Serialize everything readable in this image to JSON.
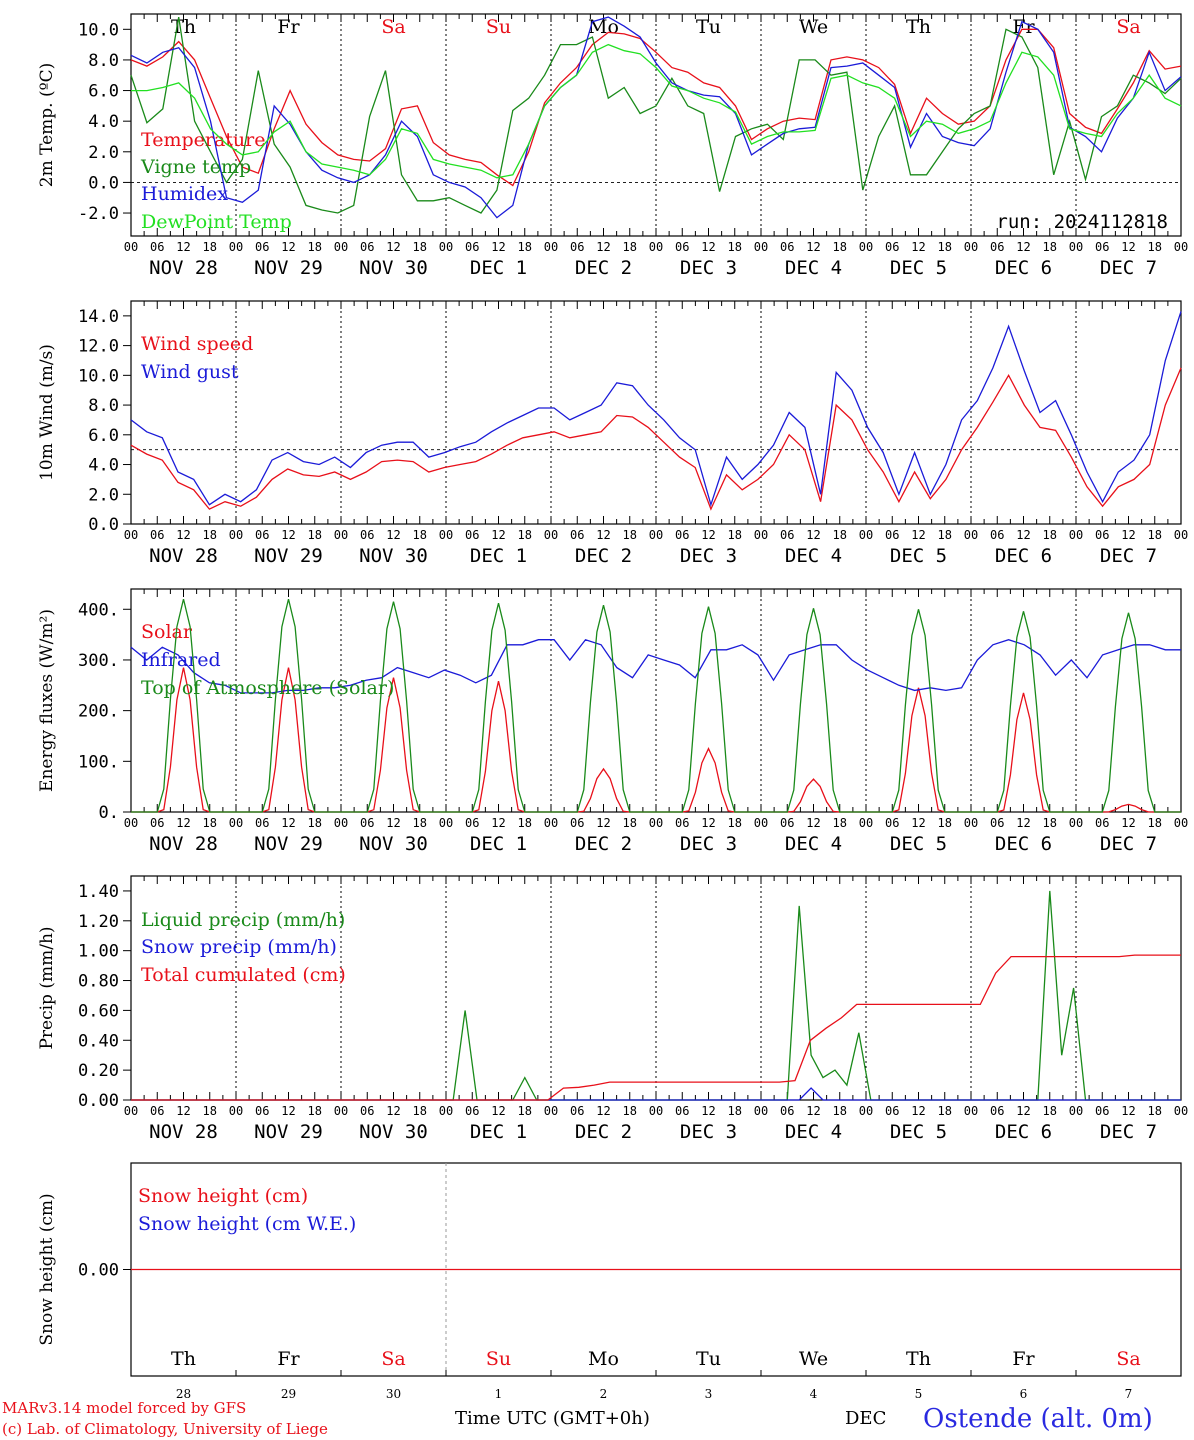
{
  "colors": {
    "red": "#e8101a",
    "green": "#1a8a1a",
    "blue": "#1b1bd8",
    "lightgreen": "#22e022",
    "black": "#000000",
    "title_blue": "#2a2ae0"
  },
  "day_labels_top": [
    "Th",
    "Fr",
    "Sa",
    "Su",
    "Mo",
    "Tu",
    "We",
    "Th",
    "Fr",
    "Sa"
  ],
  "day_label_colors": [
    "black",
    "black",
    "red",
    "red",
    "black",
    "black",
    "black",
    "black",
    "black",
    "red"
  ],
  "hour_ticks": [
    "00",
    "06",
    "12",
    "18"
  ],
  "date_labels": [
    "NOV 28",
    "NOV 29",
    "NOV 30",
    "DEC  1",
    "DEC  2",
    "DEC  3",
    "DEC  4",
    "DEC  5",
    "DEC  6",
    "DEC  7"
  ],
  "bottom_day_numbers": [
    "28",
    "29",
    "30",
    "1",
    "2",
    "3",
    "4",
    "5",
    "6",
    "7"
  ],
  "footer": {
    "line1": "MARv3.14 model forced by GFS",
    "line2": "(c) Lab. of Climatology, University of Liege",
    "time_label": "Time UTC (GMT+0h)",
    "month": "DEC",
    "station": "Ostende (alt. 0m)"
  },
  "chart_data": [
    {
      "type": "line",
      "ylabel": "2m Temp. (ºC)",
      "ylim": [
        -3.5,
        11.0
      ],
      "yticks": [
        "-2.0",
        "0.0",
        "2.0",
        "4.0",
        "6.0",
        "8.0",
        "10.0"
      ],
      "yticks_values": [
        -2,
        0,
        2,
        4,
        6,
        8,
        10
      ],
      "hline": 0,
      "annotation": "run: 2024112818",
      "x": "3-hourly from NOV 28 00 UTC to DEC 8 00 UTC",
      "series": [
        {
          "name": "Temperature",
          "color": "red",
          "values": [
            8.0,
            7.6,
            8.2,
            9.2,
            8.0,
            5.5,
            3.0,
            1.0,
            0.6,
            3.5,
            6.0,
            3.8,
            2.6,
            1.8,
            1.5,
            1.4,
            2.2,
            4.8,
            5.0,
            2.6,
            1.8,
            1.5,
            1.3,
            0.5,
            -0.2,
            2.0,
            5.2,
            6.5,
            7.5,
            9.0,
            9.8,
            9.7,
            9.4,
            8.5,
            7.5,
            7.2,
            6.5,
            6.2,
            5.0,
            2.8,
            3.5,
            4.0,
            4.2,
            4.1,
            8.0,
            8.2,
            8.0,
            7.5,
            6.4,
            3.2,
            5.5,
            4.5,
            3.8,
            4.0,
            5.0,
            8.0,
            10.0,
            10.0,
            8.8,
            4.5,
            3.6,
            3.2,
            4.8,
            6.5,
            8.6,
            7.4,
            7.6
          ]
        },
        {
          "name": "Vigne temp",
          "color": "green",
          "values": [
            7.0,
            3.9,
            4.8,
            10.8,
            4.0,
            2.0,
            0.0,
            1.5,
            7.3,
            2.5,
            1.0,
            -1.5,
            -1.8,
            -2.0,
            -1.5,
            4.3,
            7.3,
            0.5,
            -1.2,
            -1.2,
            -1.0,
            -1.5,
            -2.0,
            -0.5,
            4.7,
            5.5,
            7.0,
            9.0,
            9.0,
            9.5,
            5.5,
            6.2,
            4.5,
            5.0,
            6.8,
            5.0,
            4.5,
            -0.6,
            3.0,
            3.5,
            3.8,
            2.8,
            8.0,
            8.0,
            7.0,
            7.2,
            -0.5,
            3.0,
            5.0,
            0.5,
            0.5,
            2.0,
            3.5,
            4.5,
            5.0,
            10.0,
            9.5,
            7.5,
            0.5,
            4.0,
            0.2,
            4.3,
            5.0,
            7.0,
            6.5,
            5.8,
            6.8
          ]
        },
        {
          "name": "Humidex",
          "color": "blue",
          "values": [
            8.3,
            7.8,
            8.5,
            8.8,
            7.5,
            4.0,
            -1.0,
            -1.3,
            -0.5,
            5.0,
            3.8,
            2.0,
            0.8,
            0.3,
            0.0,
            0.5,
            1.8,
            4.0,
            3.0,
            0.5,
            0.0,
            -0.3,
            -1.0,
            -2.3,
            -1.5,
            2.5,
            5.0,
            6.2,
            7.0,
            10.5,
            10.8,
            10.2,
            9.5,
            7.8,
            6.5,
            6.0,
            5.7,
            5.6,
            4.5,
            1.8,
            2.5,
            3.2,
            3.5,
            3.6,
            7.5,
            7.6,
            7.8,
            7.0,
            6.2,
            2.3,
            4.5,
            3.0,
            2.6,
            2.4,
            3.5,
            7.2,
            10.5,
            10.0,
            8.5,
            3.6,
            3.0,
            2.0,
            4.2,
            5.5,
            8.5,
            6.0,
            6.9
          ]
        },
        {
          "name": "DewPoint Temp",
          "color": "lightgreen",
          "values": [
            6.0,
            6.0,
            6.2,
            6.5,
            5.5,
            3.5,
            2.5,
            1.8,
            2.0,
            3.3,
            4.0,
            2.0,
            1.2,
            1.0,
            0.8,
            0.5,
            1.5,
            3.5,
            3.2,
            1.5,
            1.2,
            1.0,
            0.8,
            0.3,
            0.5,
            2.5,
            5.0,
            6.2,
            7.0,
            8.5,
            9.0,
            8.6,
            8.4,
            7.5,
            6.3,
            6.0,
            5.5,
            5.2,
            4.6,
            2.5,
            3.0,
            3.3,
            3.3,
            3.4,
            6.8,
            7.0,
            6.5,
            6.2,
            5.5,
            3.0,
            4.0,
            3.8,
            3.2,
            3.5,
            4.0,
            6.5,
            8.5,
            8.2,
            7.0,
            3.5,
            3.2,
            3.0,
            4.5,
            5.5,
            7.0,
            5.5,
            5.0
          ]
        }
      ]
    },
    {
      "type": "line",
      "ylabel": "10m Wind (m/s)",
      "ylim": [
        0,
        15.0
      ],
      "yticks": [
        "0.0",
        "2.0",
        "4.0",
        "6.0",
        "8.0",
        "10.0",
        "12.0",
        "14.0"
      ],
      "yticks_values": [
        0,
        2,
        4,
        6,
        8,
        10,
        12,
        14
      ],
      "hline": 5,
      "series": [
        {
          "name": "Wind speed",
          "color": "red",
          "values": [
            5.3,
            4.7,
            4.3,
            2.8,
            2.3,
            1.0,
            1.5,
            1.2,
            1.8,
            3.0,
            3.7,
            3.3,
            3.2,
            3.5,
            3.0,
            3.5,
            4.2,
            4.3,
            4.2,
            3.5,
            3.8,
            4.0,
            4.2,
            4.7,
            5.3,
            5.8,
            6.0,
            6.2,
            5.8,
            6.0,
            6.2,
            7.3,
            7.2,
            6.5,
            5.5,
            4.5,
            3.8,
            1.0,
            3.3,
            2.3,
            3.0,
            4.0,
            6.0,
            5.0,
            1.5,
            8.0,
            7.0,
            5.0,
            3.5,
            1.5,
            3.5,
            1.7,
            3.0,
            5.0,
            6.5,
            8.2,
            10.0,
            8.0,
            6.5,
            6.3,
            4.5,
            2.5,
            1.2,
            2.5,
            3.0,
            4.0,
            8.0,
            10.5
          ]
        },
        {
          "name": "Wind gust",
          "color": "blue",
          "values": [
            7.0,
            6.2,
            5.8,
            3.5,
            3.0,
            1.3,
            2.0,
            1.5,
            2.3,
            4.3,
            4.8,
            4.2,
            4.0,
            4.5,
            3.8,
            4.8,
            5.3,
            5.5,
            5.5,
            4.5,
            4.8,
            5.2,
            5.5,
            6.2,
            6.8,
            7.3,
            7.8,
            7.8,
            7.0,
            7.5,
            8.0,
            9.5,
            9.3,
            8.0,
            7.0,
            5.8,
            5.0,
            1.3,
            4.5,
            3.0,
            4.0,
            5.3,
            7.5,
            6.5,
            2.0,
            10.2,
            9.0,
            6.5,
            4.8,
            2.0,
            4.8,
            2.0,
            4.0,
            7.0,
            8.3,
            10.5,
            13.3,
            10.3,
            7.5,
            8.3,
            6.0,
            3.5,
            1.5,
            3.5,
            4.3,
            6.0,
            11.0,
            14.3
          ]
        }
      ]
    },
    {
      "type": "line",
      "ylabel": "Energy fluxes (W/m²)",
      "ylim": [
        0,
        440
      ],
      "yticks": [
        "0.",
        "100.",
        "200.",
        "300.",
        "400."
      ],
      "yticks_values": [
        0,
        100,
        200,
        300,
        400
      ],
      "series": [
        {
          "name": "Solar",
          "color": "red",
          "peaks": [
            285,
            285,
            265,
            258,
            85,
            125,
            65,
            245,
            235,
            15
          ]
        },
        {
          "name": "Infrared",
          "color": "blue",
          "values": [
            325,
            300,
            325,
            310,
            275,
            255,
            250,
            235,
            235,
            235,
            240,
            240,
            245,
            245,
            250,
            260,
            265,
            285,
            275,
            265,
            280,
            270,
            255,
            270,
            330,
            330,
            340,
            340,
            300,
            340,
            330,
            285,
            265,
            310,
            300,
            290,
            265,
            320,
            320,
            330,
            310,
            260,
            310,
            320,
            330,
            330,
            300,
            280,
            265,
            250,
            240,
            245,
            240,
            245,
            300,
            330,
            340,
            330,
            310,
            270,
            300,
            265,
            310,
            320,
            330,
            330,
            320,
            320
          ]
        },
        {
          "name": "Top of Atmosphere (Solar)",
          "color": "green",
          "peaks": [
            420,
            420,
            415,
            412,
            408,
            405,
            402,
            400,
            396,
            393
          ]
        }
      ]
    },
    {
      "type": "line",
      "ylabel": "Precip (mm/h)",
      "ylim": [
        0,
        1.5
      ],
      "yticks": [
        "0.00",
        "0.20",
        "0.40",
        "0.60",
        "0.80",
        "1.00",
        "1.20",
        "1.40"
      ],
      "yticks_values": [
        0,
        0.2,
        0.4,
        0.6,
        0.8,
        1.0,
        1.2,
        1.4
      ],
      "series": [
        {
          "name": "Liquid precip (mm/h)",
          "color": "green",
          "values": [
            0,
            0,
            0,
            0,
            0,
            0,
            0,
            0,
            0,
            0,
            0,
            0,
            0,
            0,
            0,
            0,
            0,
            0,
            0,
            0,
            0,
            0,
            0,
            0,
            0,
            0,
            0,
            0,
            0.6,
            0,
            0,
            0,
            0,
            0.15,
            0,
            0,
            0,
            0,
            0,
            0,
            0,
            0,
            0,
            0,
            0,
            0,
            0,
            0,
            0,
            0,
            0,
            0,
            0,
            0,
            0,
            0,
            1.3,
            0.3,
            0.15,
            0.2,
            0.1,
            0.45,
            0,
            0,
            0,
            0,
            0,
            0,
            0,
            0,
            0,
            0,
            0,
            0,
            0,
            0,
            0,
            1.4,
            0.3,
            0.75,
            0,
            0,
            0,
            0,
            0,
            0,
            0,
            0,
            0
          ]
        },
        {
          "name": "Snow precip (mm/h)",
          "color": "blue",
          "values": [
            0,
            0,
            0,
            0,
            0,
            0,
            0,
            0,
            0,
            0,
            0,
            0,
            0,
            0,
            0,
            0,
            0,
            0,
            0,
            0,
            0,
            0,
            0,
            0,
            0,
            0,
            0,
            0,
            0,
            0,
            0,
            0,
            0,
            0,
            0,
            0,
            0,
            0,
            0,
            0,
            0,
            0,
            0,
            0,
            0,
            0,
            0,
            0,
            0,
            0,
            0,
            0,
            0,
            0,
            0,
            0,
            0,
            0.08,
            0,
            0,
            0,
            0,
            0,
            0,
            0,
            0,
            0,
            0,
            0,
            0,
            0,
            0,
            0,
            0,
            0,
            0,
            0,
            0,
            0,
            0,
            0,
            0,
            0,
            0,
            0,
            0,
            0,
            0,
            0
          ]
        },
        {
          "name": "Total cumulated (cm)",
          "color": "red",
          "values": [
            0,
            0,
            0,
            0,
            0,
            0,
            0,
            0,
            0,
            0,
            0,
            0,
            0,
            0,
            0,
            0,
            0,
            0,
            0,
            0,
            0,
            0,
            0,
            0,
            0,
            0,
            0,
            0,
            0.08,
            0.085,
            0.1,
            0.12,
            0.12,
            0.12,
            0.12,
            0.12,
            0.12,
            0.12,
            0.12,
            0.12,
            0.12,
            0.12,
            0.12,
            0.13,
            0.4,
            0.48,
            0.55,
            0.64,
            0.64,
            0.64,
            0.64,
            0.64,
            0.64,
            0.64,
            0.64,
            0.64,
            0.85,
            0.96,
            0.96,
            0.96,
            0.96,
            0.96,
            0.96,
            0.96,
            0.96,
            0.97,
            0.97,
            0.97,
            0.97
          ]
        }
      ]
    },
    {
      "type": "line",
      "ylabel": "Snow height (cm)",
      "ylim": [
        -1,
        1
      ],
      "yticks": [
        "0.00"
      ],
      "yticks_values": [
        0
      ],
      "series": [
        {
          "name": "Snow height (cm)",
          "color": "red",
          "values": [
            0,
            0
          ]
        },
        {
          "name": "Snow height (cm W.E.)",
          "color": "blue",
          "values": []
        }
      ]
    }
  ]
}
